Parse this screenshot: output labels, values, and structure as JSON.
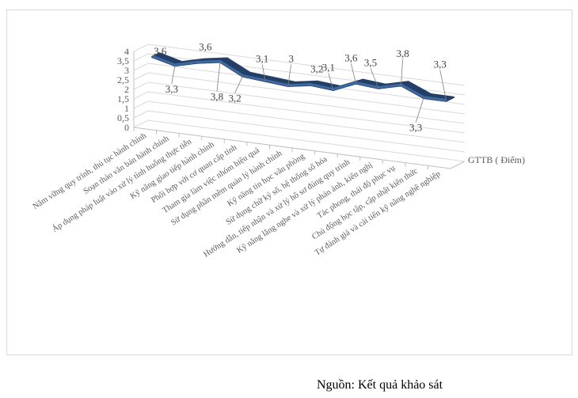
{
  "chart_data": {
    "type": "line",
    "style": "3d-line",
    "categories": [
      "Nắm vững quy trình, thủ tục hành chính",
      "Soạn thảo văn bản hành chính",
      "Áp dụng pháp luật vào xử lý tình huống thực tiễn",
      "Kỹ năng giao tiếp hành chính",
      "Phối hợp với cơ quan cấp tỉnh",
      "Tham gia làm việc nhóm hiệu quả",
      "Sử dụng phần mềm quản lý hành chính",
      "Kỹ năng tin học văn phòng",
      "Sử dụng chữ ký số, hệ thống số hóa",
      "Hướng dẫn, tiếp nhận và xử lý hồ sơ đúng quy trình",
      "Kỹ năng lắng nghe và xử lý phản ánh, kiến nghị",
      "Tác phong, thái độ phục vụ",
      "Chủ động học tập, cập nhật kiến thức",
      "Tự đánh giá và cải tiến kỹ năng nghề nghiệp"
    ],
    "series": [
      {
        "name": "GTTB ( Điểm)",
        "values": [
          3.6,
          3.3,
          3.6,
          3.8,
          3.2,
          3.1,
          3.0,
          3.2,
          3.1,
          3.6,
          3.5,
          3.8,
          3.3,
          3.3
        ],
        "data_labels": [
          "3,6",
          "3,3",
          "3,6",
          "3,8",
          "3,2",
          "3,1",
          "3",
          "3,2",
          "3,1",
          "3,6",
          "3,5",
          "3,8",
          "3,3",
          "3,3"
        ]
      }
    ],
    "y_ticks": [
      "0",
      "0,5",
      "1",
      "1,5",
      "2",
      "2,5",
      "3",
      "3,5",
      "4"
    ],
    "ylim": [
      0,
      4
    ],
    "grid": true,
    "line_color": "#3e68a0",
    "line_shadow_color": "#243f66",
    "tick_color": "#595959"
  },
  "source_note": "Nguồn: Kết quả khảo sát"
}
